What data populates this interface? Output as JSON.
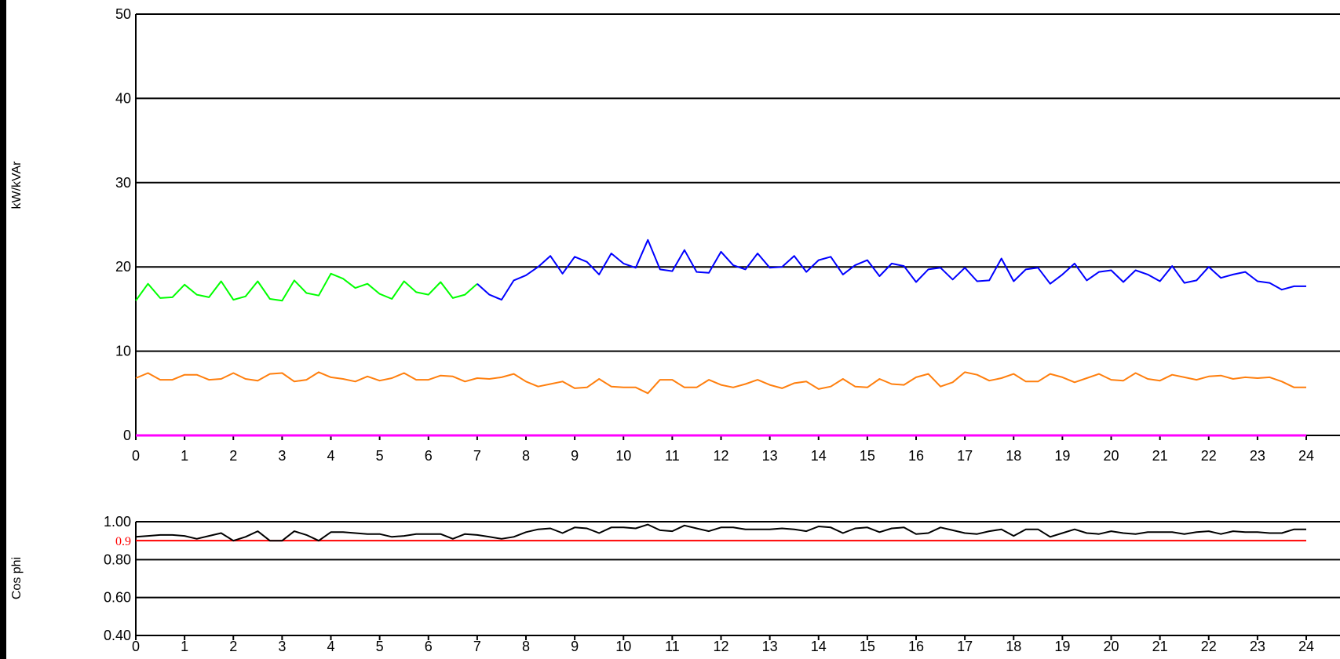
{
  "chart_data": [
    {
      "type": "line",
      "ylabel": "kW/kVAr",
      "xlim": [
        0,
        24
      ],
      "ylim": [
        0,
        50
      ],
      "xticks": [
        "0",
        "1",
        "2",
        "3",
        "4",
        "5",
        "6",
        "7",
        "8",
        "9",
        "10",
        "11",
        "12",
        "13",
        "14",
        "15",
        "16",
        "17",
        "18",
        "19",
        "20",
        "21",
        "22",
        "23",
        "24"
      ],
      "yticks": [
        "0",
        "10",
        "20",
        "30",
        "40",
        "50"
      ],
      "grid": "horizontal",
      "series": [
        {
          "color": "#00ff00",
          "x": [
            0,
            0.25,
            0.5,
            0.75,
            1,
            1.25,
            1.5,
            1.75,
            2,
            2.25,
            2.5,
            2.75,
            3,
            3.25,
            3.5,
            3.75,
            4,
            4.25,
            4.5,
            4.75,
            5,
            5.25,
            5.5,
            5.75,
            6,
            6.25,
            6.5,
            6.75,
            7
          ],
          "y": [
            16.0,
            18.0,
            16.3,
            16.4,
            17.9,
            16.7,
            16.4,
            18.3,
            16.1,
            16.5,
            18.3,
            16.2,
            16.0,
            18.4,
            16.9,
            16.6,
            19.2,
            18.6,
            17.5,
            18.0,
            16.8,
            16.2,
            18.3,
            17.0,
            16.7,
            18.2,
            16.3,
            16.7,
            18.0
          ]
        },
        {
          "color": "#0000ff",
          "x": [
            7,
            7.25,
            7.5,
            7.75,
            8,
            8.25,
            8.5,
            8.75,
            9,
            9.25,
            9.5,
            9.75,
            10,
            10.25,
            10.5,
            10.75,
            11,
            11.25,
            11.5,
            11.75,
            12,
            12.25,
            12.5,
            12.75,
            13,
            13.25,
            13.5,
            13.75,
            14,
            14.25,
            14.5,
            14.75,
            15,
            15.25,
            15.5,
            15.75,
            16,
            16.25,
            16.5,
            16.75,
            17,
            17.25,
            17.5,
            17.75,
            18,
            18.25,
            18.5,
            18.75,
            19,
            19.25,
            19.5,
            19.75,
            20,
            20.25,
            20.5,
            20.75,
            21,
            21.25,
            21.5,
            21.75,
            22,
            22.25,
            22.5,
            22.75,
            23,
            23.25,
            23.5,
            23.75,
            24
          ],
          "y": [
            18.0,
            16.7,
            16.1,
            18.4,
            19.0,
            20.0,
            21.3,
            19.2,
            21.2,
            20.6,
            19.1,
            21.6,
            20.4,
            19.9,
            23.2,
            19.7,
            19.5,
            22.0,
            19.4,
            19.3,
            21.8,
            20.2,
            19.7,
            21.6,
            19.9,
            20.0,
            21.3,
            19.4,
            20.8,
            21.2,
            19.1,
            20.2,
            20.8,
            18.9,
            20.4,
            20.1,
            18.2,
            19.7,
            19.9,
            18.5,
            19.9,
            18.3,
            18.4,
            21.0,
            18.3,
            19.7,
            19.9,
            18.0,
            19.1,
            20.4,
            18.4,
            19.4,
            19.6,
            18.2,
            19.6,
            19.1,
            18.3,
            20.1,
            18.1,
            18.4,
            20.0,
            18.7,
            19.1,
            19.4,
            18.3,
            18.1,
            17.3,
            17.7,
            17.7
          ]
        },
        {
          "color": "#ff7f0e",
          "x": [
            0,
            0.25,
            0.5,
            0.75,
            1,
            1.25,
            1.5,
            1.75,
            2,
            2.25,
            2.5,
            2.75,
            3,
            3.25,
            3.5,
            3.75,
            4,
            4.25,
            4.5,
            4.75,
            5,
            5.25,
            5.5,
            5.75,
            6,
            6.25,
            6.5,
            6.75,
            7,
            7.25,
            7.5,
            7.75,
            8,
            8.25,
            8.5,
            8.75,
            9,
            9.25,
            9.5,
            9.75,
            10,
            10.25,
            10.5,
            10.75,
            11,
            11.25,
            11.5,
            11.75,
            12,
            12.25,
            12.5,
            12.75,
            13,
            13.25,
            13.5,
            13.75,
            14,
            14.25,
            14.5,
            14.75,
            15,
            15.25,
            15.5,
            15.75,
            16,
            16.25,
            16.5,
            16.75,
            17,
            17.25,
            17.5,
            17.75,
            18,
            18.25,
            18.5,
            18.75,
            19,
            19.25,
            19.5,
            19.75,
            20,
            20.25,
            20.5,
            20.75,
            21,
            21.25,
            21.5,
            21.75,
            22,
            22.25,
            22.5,
            22.75,
            23,
            23.25,
            23.5,
            23.75,
            24
          ],
          "y": [
            6.8,
            7.4,
            6.6,
            6.6,
            7.2,
            7.2,
            6.6,
            6.7,
            7.4,
            6.7,
            6.5,
            7.3,
            7.4,
            6.4,
            6.6,
            7.5,
            6.9,
            6.7,
            6.4,
            7.0,
            6.5,
            6.8,
            7.4,
            6.6,
            6.6,
            7.1,
            7.0,
            6.4,
            6.8,
            6.7,
            6.9,
            7.3,
            6.4,
            5.8,
            6.1,
            6.4,
            5.6,
            5.7,
            6.7,
            5.8,
            5.7,
            5.7,
            5.0,
            6.6,
            6.6,
            5.7,
            5.7,
            6.6,
            6.0,
            5.7,
            6.1,
            6.6,
            6.0,
            5.6,
            6.2,
            6.4,
            5.5,
            5.8,
            6.7,
            5.8,
            5.7,
            6.7,
            6.1,
            6.0,
            6.9,
            7.3,
            5.8,
            6.3,
            7.5,
            7.2,
            6.5,
            6.8,
            7.3,
            6.4,
            6.4,
            7.3,
            6.9,
            6.3,
            6.8,
            7.3,
            6.6,
            6.5,
            7.4,
            6.7,
            6.5,
            7.2,
            6.9,
            6.6,
            7.0,
            7.1,
            6.7,
            6.9,
            6.8,
            6.9,
            6.4,
            5.7,
            5.7
          ]
        },
        {
          "color": "#ff00ff",
          "x": [
            0,
            24
          ],
          "y": [
            0,
            0
          ]
        }
      ]
    },
    {
      "type": "line",
      "ylabel": "Cos phi",
      "xlim": [
        0,
        24
      ],
      "ylim": [
        0.4,
        1.0
      ],
      "xticks": [
        "0",
        "1",
        "2",
        "3",
        "4",
        "5",
        "6",
        "7",
        "8",
        "9",
        "10",
        "11",
        "12",
        "13",
        "14",
        "15",
        "16",
        "17",
        "18",
        "19",
        "20",
        "21",
        "22",
        "23",
        "24"
      ],
      "yticks": [
        "0.40",
        "0.60",
        "0.80",
        "1.00"
      ],
      "grid": "horizontal",
      "reference": {
        "label": "0.9",
        "value": 0.9,
        "color": "#ff0000"
      },
      "series": [
        {
          "color": "#000000",
          "x": [
            0,
            0.25,
            0.5,
            0.75,
            1,
            1.25,
            1.5,
            1.75,
            2,
            2.25,
            2.5,
            2.75,
            3,
            3.25,
            3.5,
            3.75,
            4,
            4.25,
            4.5,
            4.75,
            5,
            5.25,
            5.5,
            5.75,
            6,
            6.25,
            6.5,
            6.75,
            7,
            7.25,
            7.5,
            7.75,
            8,
            8.25,
            8.5,
            8.75,
            9,
            9.25,
            9.5,
            9.75,
            10,
            10.25,
            10.5,
            10.75,
            11,
            11.25,
            11.5,
            11.75,
            12,
            12.25,
            12.5,
            12.75,
            13,
            13.25,
            13.5,
            13.75,
            14,
            14.25,
            14.5,
            14.75,
            15,
            15.25,
            15.5,
            15.75,
            16,
            16.25,
            16.5,
            16.75,
            17,
            17.25,
            17.5,
            17.75,
            18,
            18.25,
            18.5,
            18.75,
            19,
            19.25,
            19.5,
            19.75,
            20,
            20.25,
            20.5,
            20.75,
            21,
            21.25,
            21.5,
            21.75,
            22,
            22.25,
            22.5,
            22.75,
            23,
            23.25,
            23.5,
            23.75,
            24
          ],
          "y": [
            0.92,
            0.925,
            0.93,
            0.93,
            0.925,
            0.91,
            0.925,
            0.94,
            0.9,
            0.92,
            0.95,
            0.9,
            0.9,
            0.95,
            0.93,
            0.9,
            0.945,
            0.945,
            0.94,
            0.935,
            0.935,
            0.92,
            0.925,
            0.935,
            0.935,
            0.935,
            0.91,
            0.935,
            0.93,
            0.92,
            0.91,
            0.92,
            0.945,
            0.96,
            0.965,
            0.94,
            0.97,
            0.965,
            0.94,
            0.97,
            0.97,
            0.965,
            0.985,
            0.955,
            0.95,
            0.98,
            0.965,
            0.95,
            0.97,
            0.97,
            0.96,
            0.96,
            0.96,
            0.965,
            0.96,
            0.95,
            0.975,
            0.97,
            0.94,
            0.965,
            0.97,
            0.945,
            0.965,
            0.97,
            0.935,
            0.94,
            0.97,
            0.955,
            0.94,
            0.935,
            0.95,
            0.96,
            0.925,
            0.96,
            0.96,
            0.92,
            0.94,
            0.96,
            0.94,
            0.935,
            0.95,
            0.94,
            0.935,
            0.945,
            0.945,
            0.945,
            0.935,
            0.945,
            0.95,
            0.935,
            0.95,
            0.945,
            0.945,
            0.94,
            0.94,
            0.96,
            0.96
          ]
        }
      ]
    }
  ]
}
